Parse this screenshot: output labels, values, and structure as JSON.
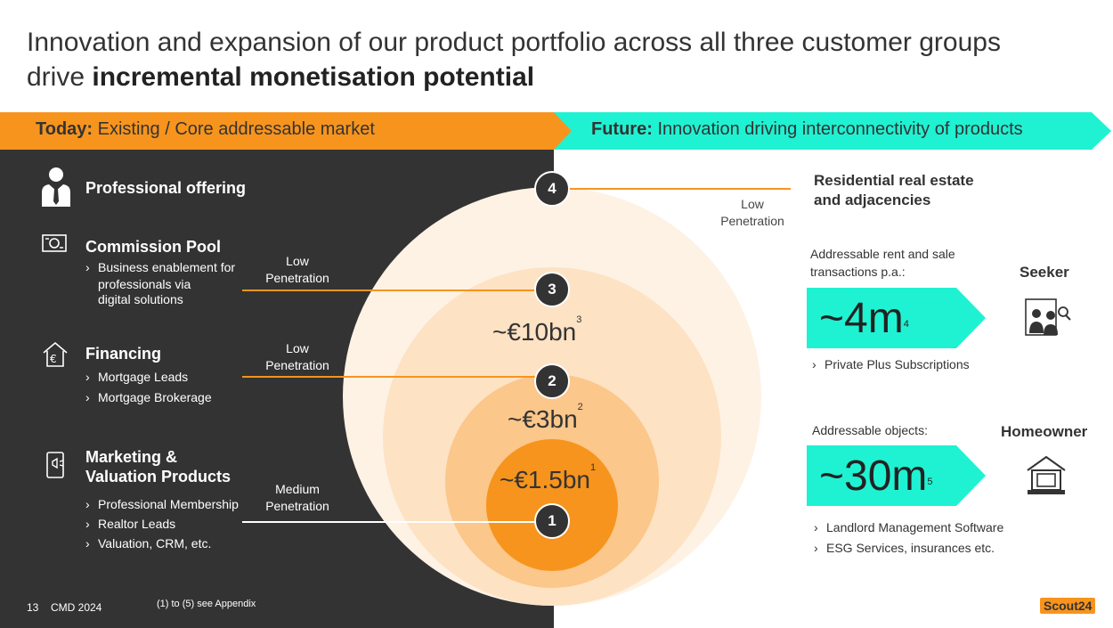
{
  "title": {
    "line1": "Innovation and expansion of our product portfolio across all three customer groups",
    "line2_prefix": "drive ",
    "line2_bold": "incremental monetisation potential"
  },
  "banners": {
    "today": {
      "bold": "Today:",
      "text": " Existing / Core addressable market",
      "color": "#f7941d"
    },
    "future": {
      "bold": "Future:",
      "text": " Innovation driving interconnectivity of products",
      "color": "#1ff2d2"
    }
  },
  "left": {
    "professional": {
      "title": "Professional offering",
      "icon": "businessman-icon"
    },
    "commission": {
      "title": "Commission Pool",
      "icon": "money-icon",
      "bullets": [
        "Business enablement for",
        "professionals via",
        "digital solutions"
      ],
      "penetration": [
        "Low",
        "Penetration"
      ]
    },
    "financing": {
      "title": "Financing",
      "icon": "house-euro-icon",
      "bullets": [
        "Mortgage Leads",
        "Mortgage Brokerage"
      ],
      "penetration": [
        "Low",
        "Penetration"
      ]
    },
    "marketing": {
      "title_lines": [
        "Marketing &",
        "Valuation Products"
      ],
      "icon": "megaphone-phone-icon",
      "bullets": [
        "Professional Membership",
        "Realtor Leads",
        "Valuation, CRM, etc."
      ],
      "penetration": [
        "Medium",
        "Penetration"
      ]
    }
  },
  "circles": {
    "c1": {
      "label": "~€1.5bn",
      "sup": "1",
      "num": "1",
      "color": "#f7941d"
    },
    "c2": {
      "label": "~€3bn",
      "sup": "2",
      "num": "2",
      "color": "#fbc78a"
    },
    "c3": {
      "label": "~€10bn",
      "sup": "3",
      "num": "3",
      "color": "#fde2c4"
    },
    "c4": {
      "num": "4",
      "color": "#fef2e4",
      "penetration": [
        "Low",
        "Penetration"
      ]
    }
  },
  "right": {
    "title_lines": [
      "Residential real estate",
      "and adjacencies"
    ],
    "seeker": {
      "caption": [
        "Addressable rent and sale",
        "transactions p.a.:"
      ],
      "role": "Seeker",
      "value": "~4m",
      "sup": "4",
      "bullet": "Private Plus Subscriptions",
      "icon": "seeker-icon"
    },
    "homeowner": {
      "caption": "Addressable objects:",
      "role": "Homeowner",
      "value": "~30m",
      "sup": "5",
      "bullets": [
        "Landlord Management Software",
        "ESG Services, insurances etc."
      ],
      "icon": "homeowner-icon"
    }
  },
  "footer": {
    "page": "13",
    "event": "CMD 2024",
    "note": "(1) to (5) see Appendix"
  },
  "logo": "Scout24"
}
